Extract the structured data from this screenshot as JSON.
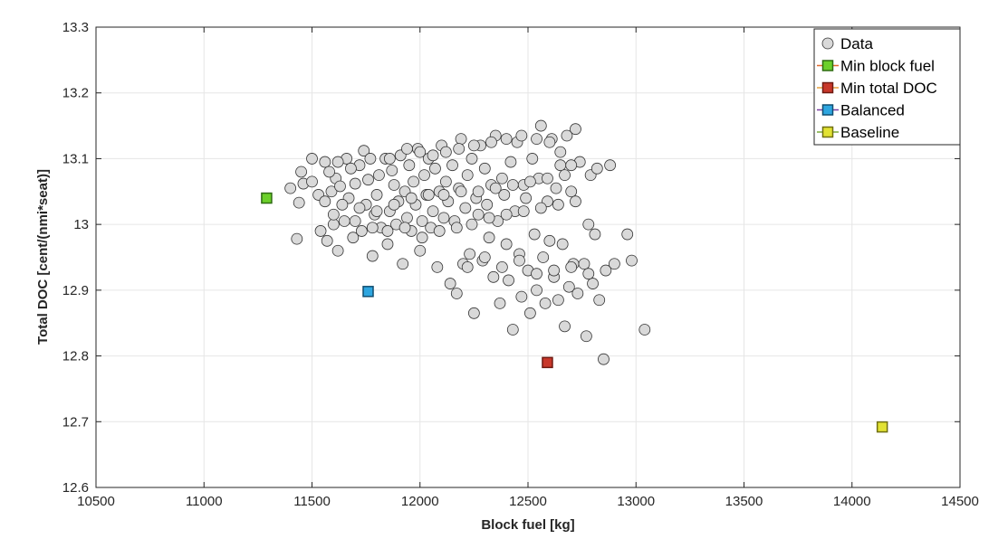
{
  "chart_data": {
    "type": "scatter",
    "xlabel": "Block fuel [kg]",
    "ylabel": "Total DOC [cent/(nmi*seat)]",
    "xlim": [
      10500,
      14500
    ],
    "ylim": [
      12.6,
      13.3
    ],
    "xticks": [
      "10500",
      "11000",
      "11500",
      "12000",
      "12500",
      "13000",
      "13500",
      "14000",
      "14500"
    ],
    "yticks": [
      "12.6",
      "12.7",
      "12.8",
      "12.9",
      "13",
      "13.1",
      "13.2",
      "13.3"
    ],
    "grid": true,
    "legend_position": "top-right",
    "series": [
      {
        "name": "Data",
        "marker": "circle",
        "color": "#d9d9d9",
        "edge_color": "#333333",
        "points": [
          [
            11400,
            13.055
          ],
          [
            11430,
            12.978
          ],
          [
            11440,
            13.033
          ],
          [
            11450,
            13.08
          ],
          [
            11460,
            13.062
          ],
          [
            11500,
            13.065
          ],
          [
            11530,
            13.045
          ],
          [
            11540,
            12.99
          ],
          [
            11560,
            13.095
          ],
          [
            11570,
            12.975
          ],
          [
            11590,
            13.05
          ],
          [
            11600,
            13.0
          ],
          [
            11610,
            13.07
          ],
          [
            11620,
            12.96
          ],
          [
            11630,
            13.058
          ],
          [
            11650,
            13.005
          ],
          [
            11660,
            13.1
          ],
          [
            11670,
            13.04
          ],
          [
            11690,
            12.98
          ],
          [
            11700,
            13.062
          ],
          [
            11720,
            13.09
          ],
          [
            11730,
            12.99
          ],
          [
            11740,
            13.112
          ],
          [
            11750,
            13.03
          ],
          [
            11760,
            13.068
          ],
          [
            11780,
            12.952
          ],
          [
            11790,
            13.015
          ],
          [
            11800,
            13.045
          ],
          [
            11810,
            13.075
          ],
          [
            11820,
            12.995
          ],
          [
            11840,
            13.1
          ],
          [
            11850,
            12.97
          ],
          [
            11860,
            13.02
          ],
          [
            11870,
            13.082
          ],
          [
            11880,
            13.06
          ],
          [
            11890,
            13.0
          ],
          [
            11900,
            13.035
          ],
          [
            11910,
            13.105
          ],
          [
            11920,
            12.94
          ],
          [
            11930,
            13.05
          ],
          [
            11940,
            13.01
          ],
          [
            11950,
            13.09
          ],
          [
            11960,
            12.99
          ],
          [
            11970,
            13.065
          ],
          [
            11980,
            13.03
          ],
          [
            11990,
            13.115
          ],
          [
            12000,
            12.96
          ],
          [
            12010,
            13.005
          ],
          [
            12020,
            13.075
          ],
          [
            12030,
            13.045
          ],
          [
            12040,
            13.1
          ],
          [
            12050,
            12.995
          ],
          [
            12060,
            13.02
          ],
          [
            12070,
            13.085
          ],
          [
            12080,
            12.935
          ],
          [
            12090,
            13.05
          ],
          [
            12100,
            13.12
          ],
          [
            12110,
            13.01
          ],
          [
            12120,
            13.065
          ],
          [
            12130,
            13.035
          ],
          [
            12140,
            12.91
          ],
          [
            12150,
            13.09
          ],
          [
            12160,
            13.005
          ],
          [
            12170,
            12.895
          ],
          [
            12180,
            13.055
          ],
          [
            12190,
            13.13
          ],
          [
            12200,
            12.94
          ],
          [
            12210,
            13.025
          ],
          [
            12220,
            13.075
          ],
          [
            12230,
            12.955
          ],
          [
            12240,
            13.1
          ],
          [
            12250,
            12.865
          ],
          [
            12260,
            13.04
          ],
          [
            12270,
            13.015
          ],
          [
            12280,
            13.12
          ],
          [
            12290,
            12.945
          ],
          [
            12300,
            13.085
          ],
          [
            12310,
            13.03
          ],
          [
            12320,
            12.98
          ],
          [
            12330,
            13.06
          ],
          [
            12340,
            12.92
          ],
          [
            12350,
            13.135
          ],
          [
            12360,
            13.005
          ],
          [
            12370,
            12.88
          ],
          [
            12380,
            13.07
          ],
          [
            12390,
            13.045
          ],
          [
            12400,
            12.97
          ],
          [
            12410,
            12.915
          ],
          [
            12420,
            13.095
          ],
          [
            12430,
            12.84
          ],
          [
            12440,
            13.02
          ],
          [
            12450,
            13.125
          ],
          [
            12460,
            12.955
          ],
          [
            12470,
            12.89
          ],
          [
            12480,
            13.06
          ],
          [
            12490,
            13.04
          ],
          [
            12500,
            12.93
          ],
          [
            12510,
            12.865
          ],
          [
            12520,
            13.1
          ],
          [
            12530,
            12.985
          ],
          [
            12540,
            12.9
          ],
          [
            12550,
            13.07
          ],
          [
            12560,
            13.15
          ],
          [
            12570,
            12.95
          ],
          [
            12580,
            12.88
          ],
          [
            12590,
            13.035
          ],
          [
            12600,
            12.975
          ],
          [
            12610,
            13.13
          ],
          [
            12620,
            12.92
          ],
          [
            12630,
            13.055
          ],
          [
            12640,
            12.885
          ],
          [
            12650,
            13.09
          ],
          [
            12660,
            12.97
          ],
          [
            12670,
            12.845
          ],
          [
            12680,
            13.135
          ],
          [
            12690,
            12.905
          ],
          [
            12700,
            13.05
          ],
          [
            12710,
            12.94
          ],
          [
            12720,
            13.145
          ],
          [
            12730,
            12.895
          ],
          [
            12740,
            13.095
          ],
          [
            12760,
            12.94
          ],
          [
            12770,
            12.83
          ],
          [
            12780,
            13.0
          ],
          [
            12790,
            13.075
          ],
          [
            12800,
            12.91
          ],
          [
            12810,
            12.985
          ],
          [
            12820,
            13.085
          ],
          [
            12830,
            12.885
          ],
          [
            12850,
            12.795
          ],
          [
            12860,
            12.93
          ],
          [
            12880,
            13.09
          ],
          [
            12900,
            12.94
          ],
          [
            12960,
            12.985
          ],
          [
            12980,
            12.945
          ],
          [
            13040,
            12.84
          ],
          [
            11500,
            13.1
          ],
          [
            11580,
            13.08
          ],
          [
            11620,
            13.095
          ],
          [
            11680,
            13.085
          ],
          [
            11770,
            13.1
          ],
          [
            11860,
            13.1
          ],
          [
            11940,
            13.115
          ],
          [
            12000,
            13.11
          ],
          [
            12060,
            13.105
          ],
          [
            12120,
            13.11
          ],
          [
            12180,
            13.115
          ],
          [
            12250,
            13.12
          ],
          [
            12330,
            13.125
          ],
          [
            12400,
            13.13
          ],
          [
            12470,
            13.135
          ],
          [
            12540,
            13.13
          ],
          [
            12600,
            13.125
          ],
          [
            12650,
            13.11
          ],
          [
            12700,
            13.09
          ],
          [
            11560,
            13.035
          ],
          [
            11640,
            13.03
          ],
          [
            11720,
            13.025
          ],
          [
            11800,
            13.02
          ],
          [
            11880,
            13.03
          ],
          [
            11960,
            13.04
          ],
          [
            12040,
            13.045
          ],
          [
            12110,
            13.045
          ],
          [
            12190,
            13.05
          ],
          [
            12270,
            13.05
          ],
          [
            12350,
            13.055
          ],
          [
            12430,
            13.06
          ],
          [
            12510,
            13.065
          ],
          [
            12590,
            13.07
          ],
          [
            12670,
            13.075
          ],
          [
            11600,
            13.015
          ],
          [
            11700,
            13.005
          ],
          [
            11780,
            12.995
          ],
          [
            11850,
            12.99
          ],
          [
            11930,
            12.995
          ],
          [
            12010,
            12.98
          ],
          [
            12090,
            12.99
          ],
          [
            12170,
            12.995
          ],
          [
            12240,
            13.0
          ],
          [
            12320,
            13.01
          ],
          [
            12400,
            13.015
          ],
          [
            12480,
            13.02
          ],
          [
            12560,
            13.025
          ],
          [
            12640,
            13.03
          ],
          [
            12720,
            13.035
          ],
          [
            12220,
            12.935
          ],
          [
            12300,
            12.95
          ],
          [
            12380,
            12.935
          ],
          [
            12460,
            12.945
          ],
          [
            12540,
            12.925
          ],
          [
            12620,
            12.93
          ],
          [
            12700,
            12.935
          ],
          [
            12780,
            12.925
          ]
        ]
      },
      {
        "name": "Min block fuel",
        "marker": "square",
        "color": "#6cd02a",
        "edge_color": "#2e6b12",
        "line_color": "#e26a2c",
        "points": [
          [
            11290,
            13.04
          ]
        ]
      },
      {
        "name": "Min total DOC",
        "marker": "square",
        "color": "#c8372a",
        "edge_color": "#6e1a12",
        "line_color": "#e8a13c",
        "points": [
          [
            12590,
            12.79
          ]
        ]
      },
      {
        "name": "Balanced",
        "marker": "square",
        "color": "#2ea6e0",
        "edge_color": "#114e70",
        "line_color": "#7b3ea3",
        "points": [
          [
            11760,
            12.898
          ]
        ]
      },
      {
        "name": "Baseline",
        "marker": "square",
        "color": "#e2e233",
        "edge_color": "#6f6f12",
        "line_color": "#7aab3a",
        "points": [
          [
            14140,
            12.692
          ]
        ]
      }
    ]
  }
}
